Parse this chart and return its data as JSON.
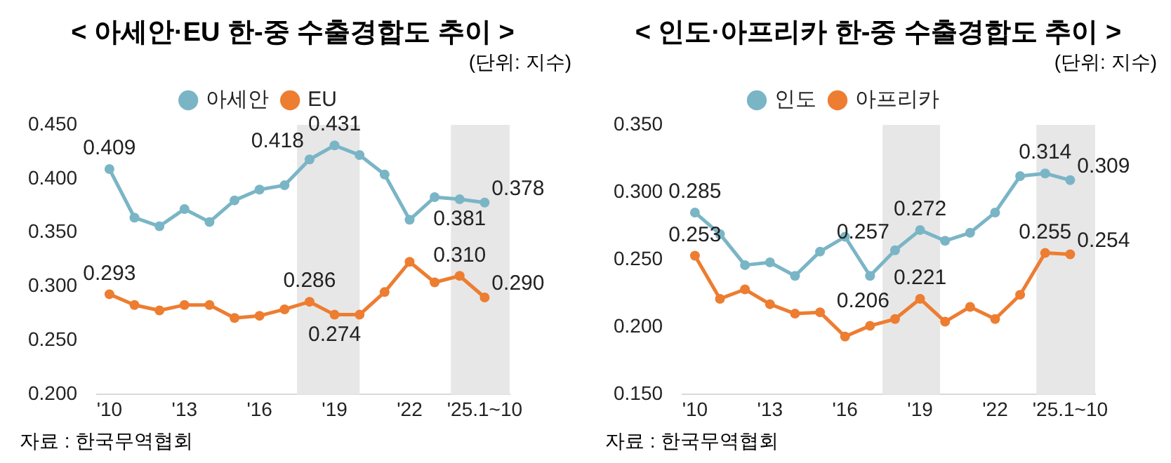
{
  "chart_data": [
    {
      "type": "line",
      "title": "< 아세안·EU 한-중 수출경합도 추이 >",
      "subtitle": "(단위: 지수)",
      "annotations": [
        "자료 : 한국무역협회"
      ],
      "legend": "top",
      "marker": "circle",
      "grid": false,
      "x": [
        2010,
        2011,
        2012,
        2013,
        2014,
        2015,
        2016,
        2017,
        2018,
        2019,
        2020,
        2021,
        2022,
        2023,
        2024,
        2025
      ],
      "xlim": [
        2009.5,
        2026
      ],
      "xticks": [
        {
          "value": 2010,
          "label": "'10"
        },
        {
          "value": 2013,
          "label": "'13"
        },
        {
          "value": 2016,
          "label": "'16"
        },
        {
          "value": 2019,
          "label": "'19"
        },
        {
          "value": 2022,
          "label": "'22"
        },
        {
          "value": 2025,
          "label": "'25.1~10"
        }
      ],
      "ylim": [
        0.2,
        0.45
      ],
      "yticks": [
        {
          "value": 0.2,
          "label": "0.200"
        },
        {
          "value": 0.25,
          "label": "0.250"
        },
        {
          "value": 0.3,
          "label": "0.300"
        },
        {
          "value": 0.35,
          "label": "0.350"
        },
        {
          "value": 0.4,
          "label": "0.400"
        },
        {
          "value": 0.45,
          "label": "0.450"
        }
      ],
      "bands": [
        {
          "axis": "x",
          "from": 2017.5,
          "to": 2020,
          "color": "#e7e7e7"
        },
        {
          "axis": "x",
          "from": 2023.65,
          "to": 2026,
          "color": "#e7e7e7"
        }
      ],
      "series": [
        {
          "name": "아세안",
          "color": "#7ab5c6",
          "values": [
            0.409,
            0.364,
            0.356,
            0.372,
            0.36,
            0.38,
            0.39,
            0.394,
            0.418,
            0.431,
            0.422,
            0.404,
            0.362,
            0.383,
            0.381,
            0.378
          ],
          "value_labels": [
            "0.409",
            null,
            null,
            null,
            null,
            null,
            null,
            null,
            "0.418",
            "0.431",
            null,
            null,
            null,
            null,
            "0.381",
            "0.378"
          ]
        },
        {
          "name": "EU",
          "color": "#ed7d31",
          "values": [
            0.293,
            0.283,
            0.278,
            0.283,
            0.283,
            0.271,
            0.273,
            0.279,
            0.286,
            0.274,
            0.274,
            0.295,
            0.323,
            0.304,
            0.31,
            0.29
          ],
          "value_labels": [
            "0.293",
            null,
            null,
            null,
            null,
            null,
            null,
            null,
            "0.286",
            "0.274",
            null,
            null,
            null,
            null,
            "0.310",
            "0.290"
          ]
        }
      ]
    },
    {
      "type": "line",
      "title": "< 인도·아프리카 한-중 수출경합도 추이 >",
      "subtitle": "(단위: 지수)",
      "annotations": [
        "자료 : 한국무역협회"
      ],
      "legend": "top",
      "marker": "circle",
      "grid": false,
      "x": [
        2010,
        2011,
        2012,
        2013,
        2014,
        2015,
        2016,
        2017,
        2018,
        2019,
        2020,
        2021,
        2022,
        2023,
        2024,
        2025
      ],
      "xlim": [
        2009.5,
        2026
      ],
      "xticks": [
        {
          "value": 2010,
          "label": "'10"
        },
        {
          "value": 2013,
          "label": "'13"
        },
        {
          "value": 2016,
          "label": "'16"
        },
        {
          "value": 2019,
          "label": "'19"
        },
        {
          "value": 2022,
          "label": "'22"
        },
        {
          "value": 2025,
          "label": "'25.1~10"
        }
      ],
      "ylim": [
        0.15,
        0.35
      ],
      "yticks": [
        {
          "value": 0.15,
          "label": "0.150"
        },
        {
          "value": 0.2,
          "label": "0.200"
        },
        {
          "value": 0.25,
          "label": "0.250"
        },
        {
          "value": 0.3,
          "label": "0.300"
        },
        {
          "value": 0.35,
          "label": "0.350"
        }
      ],
      "bands": [
        {
          "axis": "x",
          "from": 2017.5,
          "to": 2019.8,
          "color": "#e7e7e7"
        },
        {
          "axis": "x",
          "from": 2023.65,
          "to": 2026,
          "color": "#e7e7e7"
        }
      ],
      "series": [
        {
          "name": "인도",
          "color": "#7ab5c6",
          "values": [
            0.285,
            0.269,
            0.246,
            0.248,
            0.238,
            0.256,
            0.267,
            0.238,
            0.257,
            0.272,
            0.264,
            0.27,
            0.285,
            0.312,
            0.314,
            0.309
          ],
          "value_labels": [
            "0.285",
            null,
            null,
            null,
            null,
            null,
            null,
            null,
            "0.257",
            "0.272",
            null,
            null,
            null,
            null,
            "0.314",
            "0.309"
          ]
        },
        {
          "name": "아프리카",
          "color": "#ed7d31",
          "values": [
            0.253,
            0.221,
            0.228,
            0.217,
            0.21,
            0.211,
            0.193,
            0.201,
            0.206,
            0.221,
            0.204,
            0.215,
            0.206,
            0.224,
            0.255,
            0.254
          ],
          "value_labels": [
            "0.253",
            null,
            null,
            null,
            null,
            null,
            null,
            null,
            "0.206",
            "0.221",
            null,
            null,
            null,
            null,
            "0.255",
            "0.254"
          ]
        }
      ]
    }
  ]
}
